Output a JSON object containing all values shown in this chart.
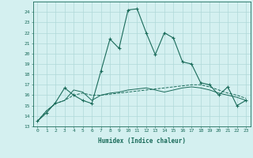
{
  "xlabel": "Humidex (Indice chaleur)",
  "ylabel": "",
  "background_color": "#d4f0f0",
  "grid_color": "#b0d8d8",
  "line_color": "#1a6b5a",
  "xlim": [
    -0.5,
    23.5
  ],
  "ylim": [
    13,
    25
  ],
  "yticks": [
    13,
    14,
    15,
    16,
    17,
    18,
    19,
    20,
    21,
    22,
    23,
    24
  ],
  "xticks": [
    0,
    1,
    2,
    3,
    4,
    5,
    6,
    7,
    8,
    9,
    10,
    11,
    12,
    13,
    14,
    15,
    16,
    17,
    18,
    19,
    20,
    21,
    22,
    23
  ],
  "series1_x": [
    0,
    1,
    2,
    3,
    4,
    5,
    6,
    7,
    8,
    9,
    10,
    11,
    12,
    13,
    14,
    15,
    16,
    17,
    18,
    19,
    20,
    21,
    22,
    23
  ],
  "series1_y": [
    13.5,
    14.3,
    15.3,
    16.7,
    16.0,
    15.5,
    15.2,
    18.3,
    21.4,
    20.5,
    24.2,
    24.3,
    22.0,
    19.9,
    22.0,
    21.5,
    19.2,
    19.0,
    17.2,
    17.0,
    16.0,
    16.8,
    15.0,
    15.5
  ],
  "series2_x": [
    0,
    1,
    2,
    3,
    4,
    5,
    6,
    7,
    8,
    9,
    10,
    11,
    12,
    13,
    14,
    15,
    16,
    17,
    18,
    19,
    20,
    21,
    22,
    23
  ],
  "series2_y": [
    13.5,
    14.5,
    15.2,
    15.5,
    16.0,
    16.2,
    16.0,
    16.0,
    16.1,
    16.2,
    16.3,
    16.4,
    16.5,
    16.6,
    16.7,
    16.8,
    16.9,
    17.0,
    17.0,
    16.8,
    16.5,
    16.2,
    16.0,
    15.7
  ],
  "series3_x": [
    0,
    1,
    2,
    3,
    4,
    5,
    6,
    7,
    8,
    9,
    10,
    11,
    12,
    13,
    14,
    15,
    16,
    17,
    18,
    19,
    20,
    21,
    22,
    23
  ],
  "series3_y": [
    13.5,
    14.5,
    15.2,
    15.5,
    16.5,
    16.3,
    15.5,
    16.0,
    16.2,
    16.3,
    16.5,
    16.6,
    16.7,
    16.5,
    16.3,
    16.5,
    16.7,
    16.8,
    16.7,
    16.5,
    16.2,
    16.0,
    15.8,
    15.5
  ]
}
